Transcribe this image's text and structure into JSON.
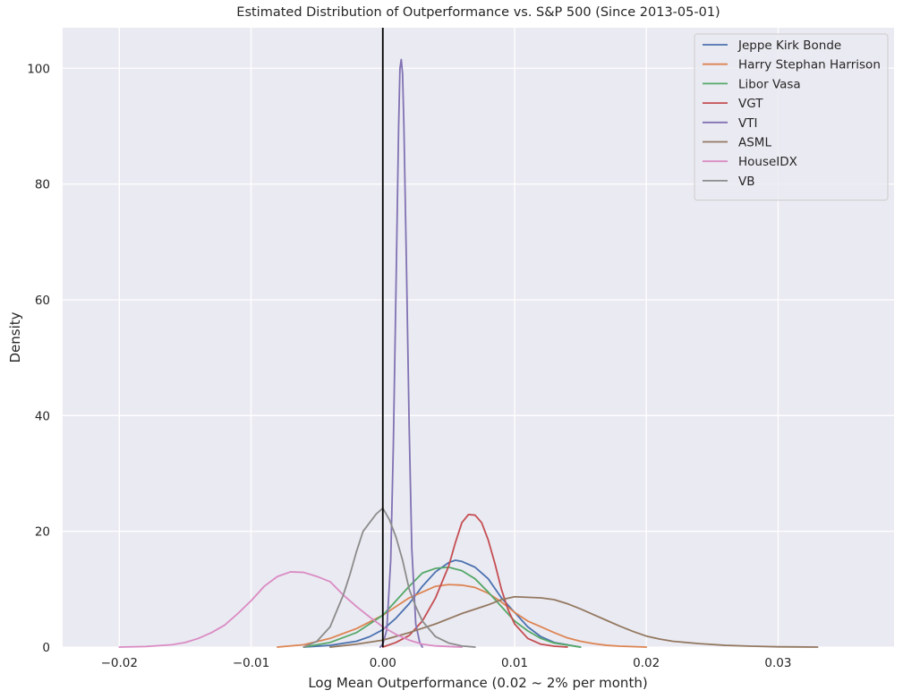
{
  "chart_data": {
    "type": "line",
    "title": "Estimated Distribution of Outperformance vs. S&P 500 (Since 2013-05-01)",
    "xlabel": "Log Mean Outperformance (0.02 ~ 2% per month)",
    "ylabel": "Density",
    "xlim": [
      -0.0243,
      0.0388
    ],
    "ylim": [
      0,
      107
    ],
    "xticks": [
      -0.02,
      -0.01,
      0.0,
      0.01,
      0.02,
      0.03
    ],
    "xtick_labels": [
      "−0.02",
      "−0.01",
      "0.00",
      "0.01",
      "0.02",
      "0.03"
    ],
    "yticks": [
      0,
      20,
      40,
      60,
      80,
      100
    ],
    "ytick_labels": [
      "0",
      "20",
      "40",
      "60",
      "80",
      "100"
    ],
    "grid": true,
    "legend_position": "top-right",
    "vline_x": 0.0,
    "series": [
      {
        "name": "Jeppe Kirk Bonde",
        "color": "#4c72b0",
        "x": [
          -0.006,
          -0.004,
          -0.002,
          -0.001,
          0.0,
          0.001,
          0.002,
          0.003,
          0.004,
          0.005,
          0.0055,
          0.006,
          0.007,
          0.008,
          0.009,
          0.01,
          0.011,
          0.012,
          0.013,
          0.015
        ],
        "y": [
          0,
          0.3,
          1.0,
          1.8,
          3.0,
          5.0,
          7.5,
          10.5,
          13.0,
          14.6,
          15.0,
          14.8,
          13.8,
          11.8,
          8.5,
          6.0,
          3.5,
          1.8,
          0.8,
          0
        ]
      },
      {
        "name": "Harry Stephan Harrison",
        "color": "#dd8452",
        "x": [
          -0.008,
          -0.006,
          -0.004,
          -0.002,
          0.0,
          0.002,
          0.004,
          0.005,
          0.006,
          0.007,
          0.008,
          0.009,
          0.01,
          0.011,
          0.012,
          0.013,
          0.014,
          0.015,
          0.016,
          0.017,
          0.018,
          0.02
        ],
        "y": [
          0,
          0.4,
          1.5,
          3.2,
          5.5,
          8.5,
          10.5,
          10.8,
          10.7,
          10.3,
          9.3,
          7.8,
          6.0,
          4.5,
          3.5,
          2.5,
          1.6,
          1.0,
          0.6,
          0.3,
          0.15,
          0
        ]
      },
      {
        "name": "Libor Vasa",
        "color": "#55a868",
        "x": [
          -0.006,
          -0.004,
          -0.002,
          -0.001,
          0.0,
          0.001,
          0.002,
          0.003,
          0.004,
          0.005,
          0.006,
          0.007,
          0.008,
          0.009,
          0.01,
          0.011,
          0.012,
          0.013,
          0.015
        ],
        "y": [
          0,
          0.8,
          2.5,
          4.0,
          5.5,
          8.0,
          10.5,
          12.8,
          13.6,
          13.8,
          13.2,
          11.8,
          9.5,
          7.0,
          4.5,
          2.8,
          1.5,
          0.7,
          0
        ]
      },
      {
        "name": "VGT",
        "color": "#c44e52",
        "x": [
          0.0,
          0.001,
          0.002,
          0.003,
          0.004,
          0.005,
          0.0055,
          0.006,
          0.0065,
          0.007,
          0.0075,
          0.008,
          0.0085,
          0.009,
          0.0095,
          0.01,
          0.011,
          0.012,
          0.013,
          0.014
        ],
        "y": [
          0,
          0.8,
          2.0,
          4.5,
          8.5,
          14.0,
          18.0,
          21.5,
          22.9,
          22.8,
          21.5,
          18.5,
          14.5,
          10.0,
          6.5,
          4.0,
          1.5,
          0.5,
          0.15,
          0
        ]
      },
      {
        "name": "VTI",
        "color": "#8172b3",
        "x": [
          -0.0002,
          0.0,
          0.0003,
          0.0006,
          0.0008,
          0.001,
          0.0012,
          0.0013,
          0.0014,
          0.0015,
          0.0016,
          0.0018,
          0.002,
          0.0022,
          0.0025,
          0.0028,
          0.003
        ],
        "y": [
          0,
          0.5,
          3.0,
          15.0,
          35.0,
          62.0,
          90.0,
          100.0,
          101.5,
          99.0,
          90.0,
          65.0,
          38.0,
          17.0,
          4.0,
          0.8,
          0
        ]
      },
      {
        "name": "ASML",
        "color": "#937860",
        "x": [
          -0.004,
          -0.002,
          0.0,
          0.002,
          0.004,
          0.006,
          0.008,
          0.009,
          0.01,
          0.011,
          0.012,
          0.013,
          0.014,
          0.015,
          0.016,
          0.017,
          0.018,
          0.019,
          0.02,
          0.021,
          0.022,
          0.024,
          0.026,
          0.028,
          0.03,
          0.033
        ],
        "y": [
          0,
          0.5,
          1.2,
          2.5,
          4.0,
          5.8,
          7.3,
          8.2,
          8.7,
          8.6,
          8.5,
          8.2,
          7.5,
          6.6,
          5.6,
          4.6,
          3.6,
          2.7,
          1.9,
          1.4,
          1.0,
          0.6,
          0.3,
          0.15,
          0.05,
          0
        ]
      },
      {
        "name": "HouseIDX",
        "color": "#da8bc3",
        "x": [
          -0.02,
          -0.018,
          -0.016,
          -0.015,
          -0.014,
          -0.013,
          -0.012,
          -0.011,
          -0.01,
          -0.009,
          -0.008,
          -0.007,
          -0.006,
          -0.005,
          -0.004,
          -0.003,
          -0.002,
          -0.001,
          0.0,
          0.001,
          0.002,
          0.003,
          0.004,
          0.006
        ],
        "y": [
          0,
          0.1,
          0.4,
          0.8,
          1.5,
          2.5,
          3.8,
          5.8,
          8.0,
          10.5,
          12.2,
          13.0,
          12.9,
          12.2,
          11.3,
          9.0,
          7.0,
          5.2,
          3.5,
          2.2,
          1.2,
          0.5,
          0.2,
          0
        ]
      },
      {
        "name": "VB",
        "color": "#8c8c8c",
        "x": [
          -0.006,
          -0.005,
          -0.004,
          -0.003,
          -0.0025,
          -0.002,
          -0.0015,
          -0.001,
          -0.0005,
          0.0,
          0.0005,
          0.001,
          0.0015,
          0.002,
          0.0025,
          0.003,
          0.004,
          0.005,
          0.006,
          0.007
        ],
        "y": [
          0,
          1.0,
          3.5,
          9.0,
          12.5,
          16.5,
          20.0,
          21.5,
          23.0,
          24.0,
          22.0,
          19.0,
          15.0,
          10.0,
          7.0,
          4.5,
          1.8,
          0.7,
          0.2,
          0
        ]
      }
    ]
  }
}
